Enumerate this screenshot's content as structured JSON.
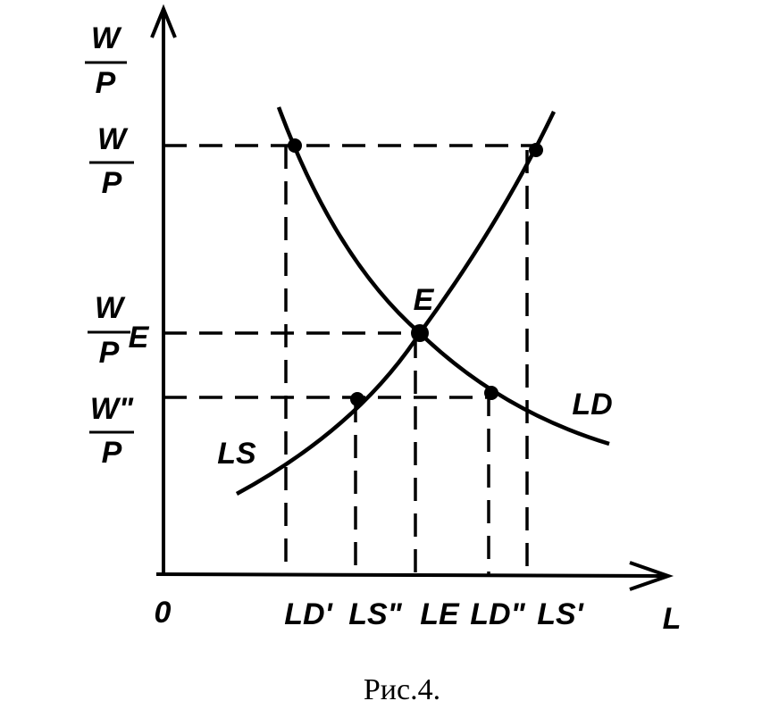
{
  "axes": {
    "y_label": {
      "numerator": "W",
      "denominator": "P"
    },
    "x_label": "L",
    "origin": "0"
  },
  "y_levels": [
    {
      "numerator": "W",
      "denominator": "P"
    },
    {
      "numerator": "W",
      "denominator": "P",
      "subscript": "E"
    },
    {
      "numerator": "W\"",
      "denominator": "P"
    }
  ],
  "x_levels": [
    "LD'",
    "LS\"",
    "LE",
    "LD\"",
    "LS'"
  ],
  "curves": {
    "supply": "LS",
    "demand": "LD"
  },
  "point": "E",
  "caption": "Рис.4."
}
